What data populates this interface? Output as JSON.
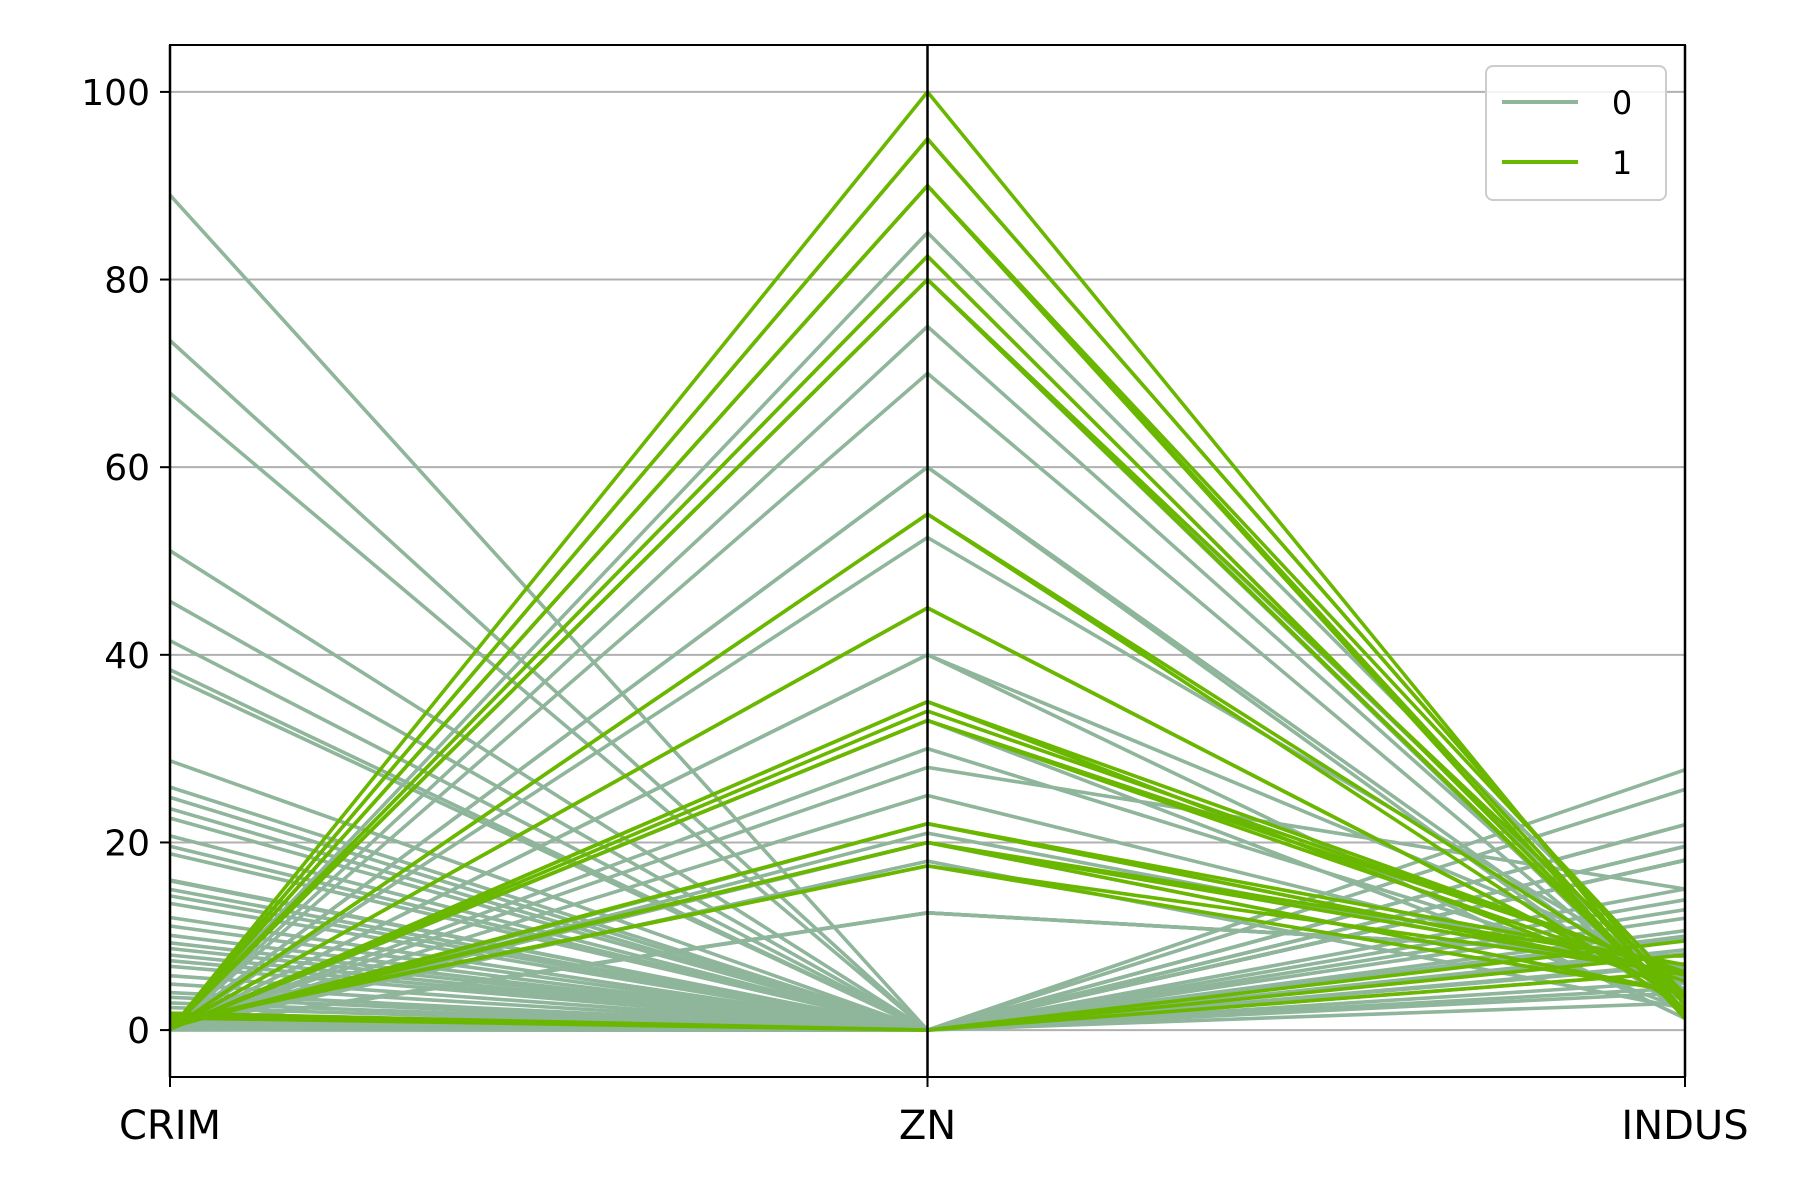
{
  "chart_data": {
    "type": "parallel_coordinates",
    "title": "",
    "xlabel": "",
    "ylabel": "",
    "categories": [
      "CRIM",
      "ZN",
      "INDUS"
    ],
    "y_ticks": [
      "0",
      "20",
      "40",
      "60",
      "80",
      "100"
    ],
    "ylim": [
      -5,
      105
    ],
    "grid": "horizontal",
    "legend_placement": "top-right",
    "colors": {
      "0": "#8fb59b",
      "1": "#6ab700"
    },
    "series": [
      {
        "name": "0",
        "lines": [
          [
            89.0,
            0,
            18.1
          ],
          [
            73.5,
            0,
            18.1
          ],
          [
            67.9,
            0,
            18.1
          ],
          [
            51.1,
            0,
            18.1
          ],
          [
            45.7,
            0,
            18.1
          ],
          [
            41.5,
            0,
            18.1
          ],
          [
            38.4,
            0,
            18.1
          ],
          [
            37.7,
            0,
            18.1
          ],
          [
            28.7,
            0,
            18.1
          ],
          [
            25.9,
            0,
            18.1
          ],
          [
            24.8,
            0,
            18.1
          ],
          [
            23.6,
            0,
            18.1
          ],
          [
            22.6,
            0,
            18.1
          ],
          [
            20.7,
            0,
            18.1
          ],
          [
            19.6,
            0,
            18.1
          ],
          [
            18.8,
            0,
            18.1
          ],
          [
            16.0,
            0,
            18.1
          ],
          [
            15.9,
            0,
            18.1
          ],
          [
            15.0,
            0,
            18.1
          ],
          [
            14.3,
            0,
            18.1
          ],
          [
            13.5,
            0,
            18.1
          ],
          [
            12.0,
            0,
            18.1
          ],
          [
            11.1,
            0,
            18.1
          ],
          [
            10.1,
            0,
            18.1
          ],
          [
            9.3,
            0,
            18.1
          ],
          [
            8.7,
            0,
            18.1
          ],
          [
            8.0,
            0,
            18.1
          ],
          [
            7.4,
            0,
            18.1
          ],
          [
            6.8,
            0,
            18.1
          ],
          [
            5.8,
            0,
            18.1
          ],
          [
            4.9,
            0,
            18.1
          ],
          [
            4.0,
            0,
            18.1
          ],
          [
            3.5,
            0,
            18.1
          ],
          [
            2.9,
            0,
            19.58
          ],
          [
            2.4,
            0,
            19.58
          ],
          [
            1.8,
            0,
            21.89
          ],
          [
            1.4,
            0,
            21.89
          ],
          [
            1.2,
            0,
            19.58
          ],
          [
            0.9,
            0,
            21.89
          ],
          [
            0.6,
            0,
            8.14
          ],
          [
            0.4,
            0,
            10.01
          ],
          [
            0.3,
            0,
            25.65
          ],
          [
            0.2,
            0,
            27.74
          ],
          [
            0.15,
            0,
            9.9
          ],
          [
            0.1,
            0,
            15.04
          ],
          [
            0.08,
            0,
            13.89
          ],
          [
            0.06,
            0,
            12.83
          ],
          [
            0.05,
            0,
            6.91
          ],
          [
            0.04,
            0,
            8.56
          ],
          [
            0.03,
            0,
            11.93
          ],
          [
            0.02,
            0,
            7.07
          ],
          [
            0.5,
            0,
            9.69
          ],
          [
            0.7,
            0,
            10.59
          ],
          [
            0.8,
            0,
            6.2
          ],
          [
            1.0,
            0,
            5.19
          ],
          [
            0.35,
            0,
            4.49
          ],
          [
            0.25,
            0,
            3.97
          ],
          [
            0.12,
            0,
            2.89
          ],
          [
            0.03,
            85,
            4.15
          ],
          [
            0.04,
            80,
            3.37
          ],
          [
            0.05,
            80,
            1.52
          ],
          [
            0.02,
            75,
            2.95
          ],
          [
            0.03,
            70,
            2.24
          ],
          [
            0.04,
            60,
            1.69
          ],
          [
            0.05,
            60,
            2.93
          ],
          [
            0.06,
            52.5,
            5.32
          ],
          [
            0.03,
            40,
            6.41
          ],
          [
            0.04,
            40,
            1.25
          ],
          [
            0.05,
            33,
            2.18
          ],
          [
            0.08,
            30,
            4.93
          ],
          [
            0.07,
            28,
            15.04
          ],
          [
            0.09,
            25,
            5.13
          ],
          [
            0.1,
            22,
            5.86
          ],
          [
            0.06,
            21,
            5.64
          ],
          [
            0.12,
            20,
            3.97
          ],
          [
            0.15,
            18,
            2.31
          ],
          [
            0.2,
            12.5,
            7.87
          ],
          [
            0.22,
            12.5,
            7.87
          ],
          [
            0.11,
            12.5,
            7.87
          ],
          [
            0.09,
            12.5,
            7.87
          ]
        ]
      },
      {
        "name": "1",
        "lines": [
          [
            0.02,
            100,
            1.32
          ],
          [
            0.01,
            95,
            2.68
          ],
          [
            0.02,
            95,
            2.68
          ],
          [
            0.03,
            90,
            1.22
          ],
          [
            0.04,
            90,
            2.02
          ],
          [
            0.02,
            90,
            3.75
          ],
          [
            0.03,
            82.5,
            2.03
          ],
          [
            0.04,
            82.5,
            2.03
          ],
          [
            0.03,
            80,
            1.91
          ],
          [
            0.06,
            80,
            1.76
          ],
          [
            0.05,
            80,
            3.64
          ],
          [
            0.04,
            55,
            2.25
          ],
          [
            0.06,
            55,
            3.78
          ],
          [
            0.07,
            45,
            3.44
          ],
          [
            0.09,
            45,
            3.44
          ],
          [
            0.08,
            35,
            6.06
          ],
          [
            0.1,
            35,
            4.05
          ],
          [
            0.12,
            34,
            6.09
          ],
          [
            0.14,
            33,
            5.2
          ],
          [
            0.13,
            33,
            6.2
          ],
          [
            0.3,
            22,
            5.86
          ],
          [
            0.4,
            22,
            6.96
          ],
          [
            0.5,
            20,
            6.96
          ],
          [
            0.6,
            20,
            3.97
          ],
          [
            0.7,
            20,
            6.09
          ],
          [
            0.8,
            17.5,
            6.09
          ],
          [
            0.9,
            17.5,
            3.97
          ],
          [
            1.6,
            0,
            8.0
          ],
          [
            1.8,
            0,
            9.5
          ],
          [
            1.3,
            0,
            6.2
          ]
        ]
      }
    ]
  }
}
